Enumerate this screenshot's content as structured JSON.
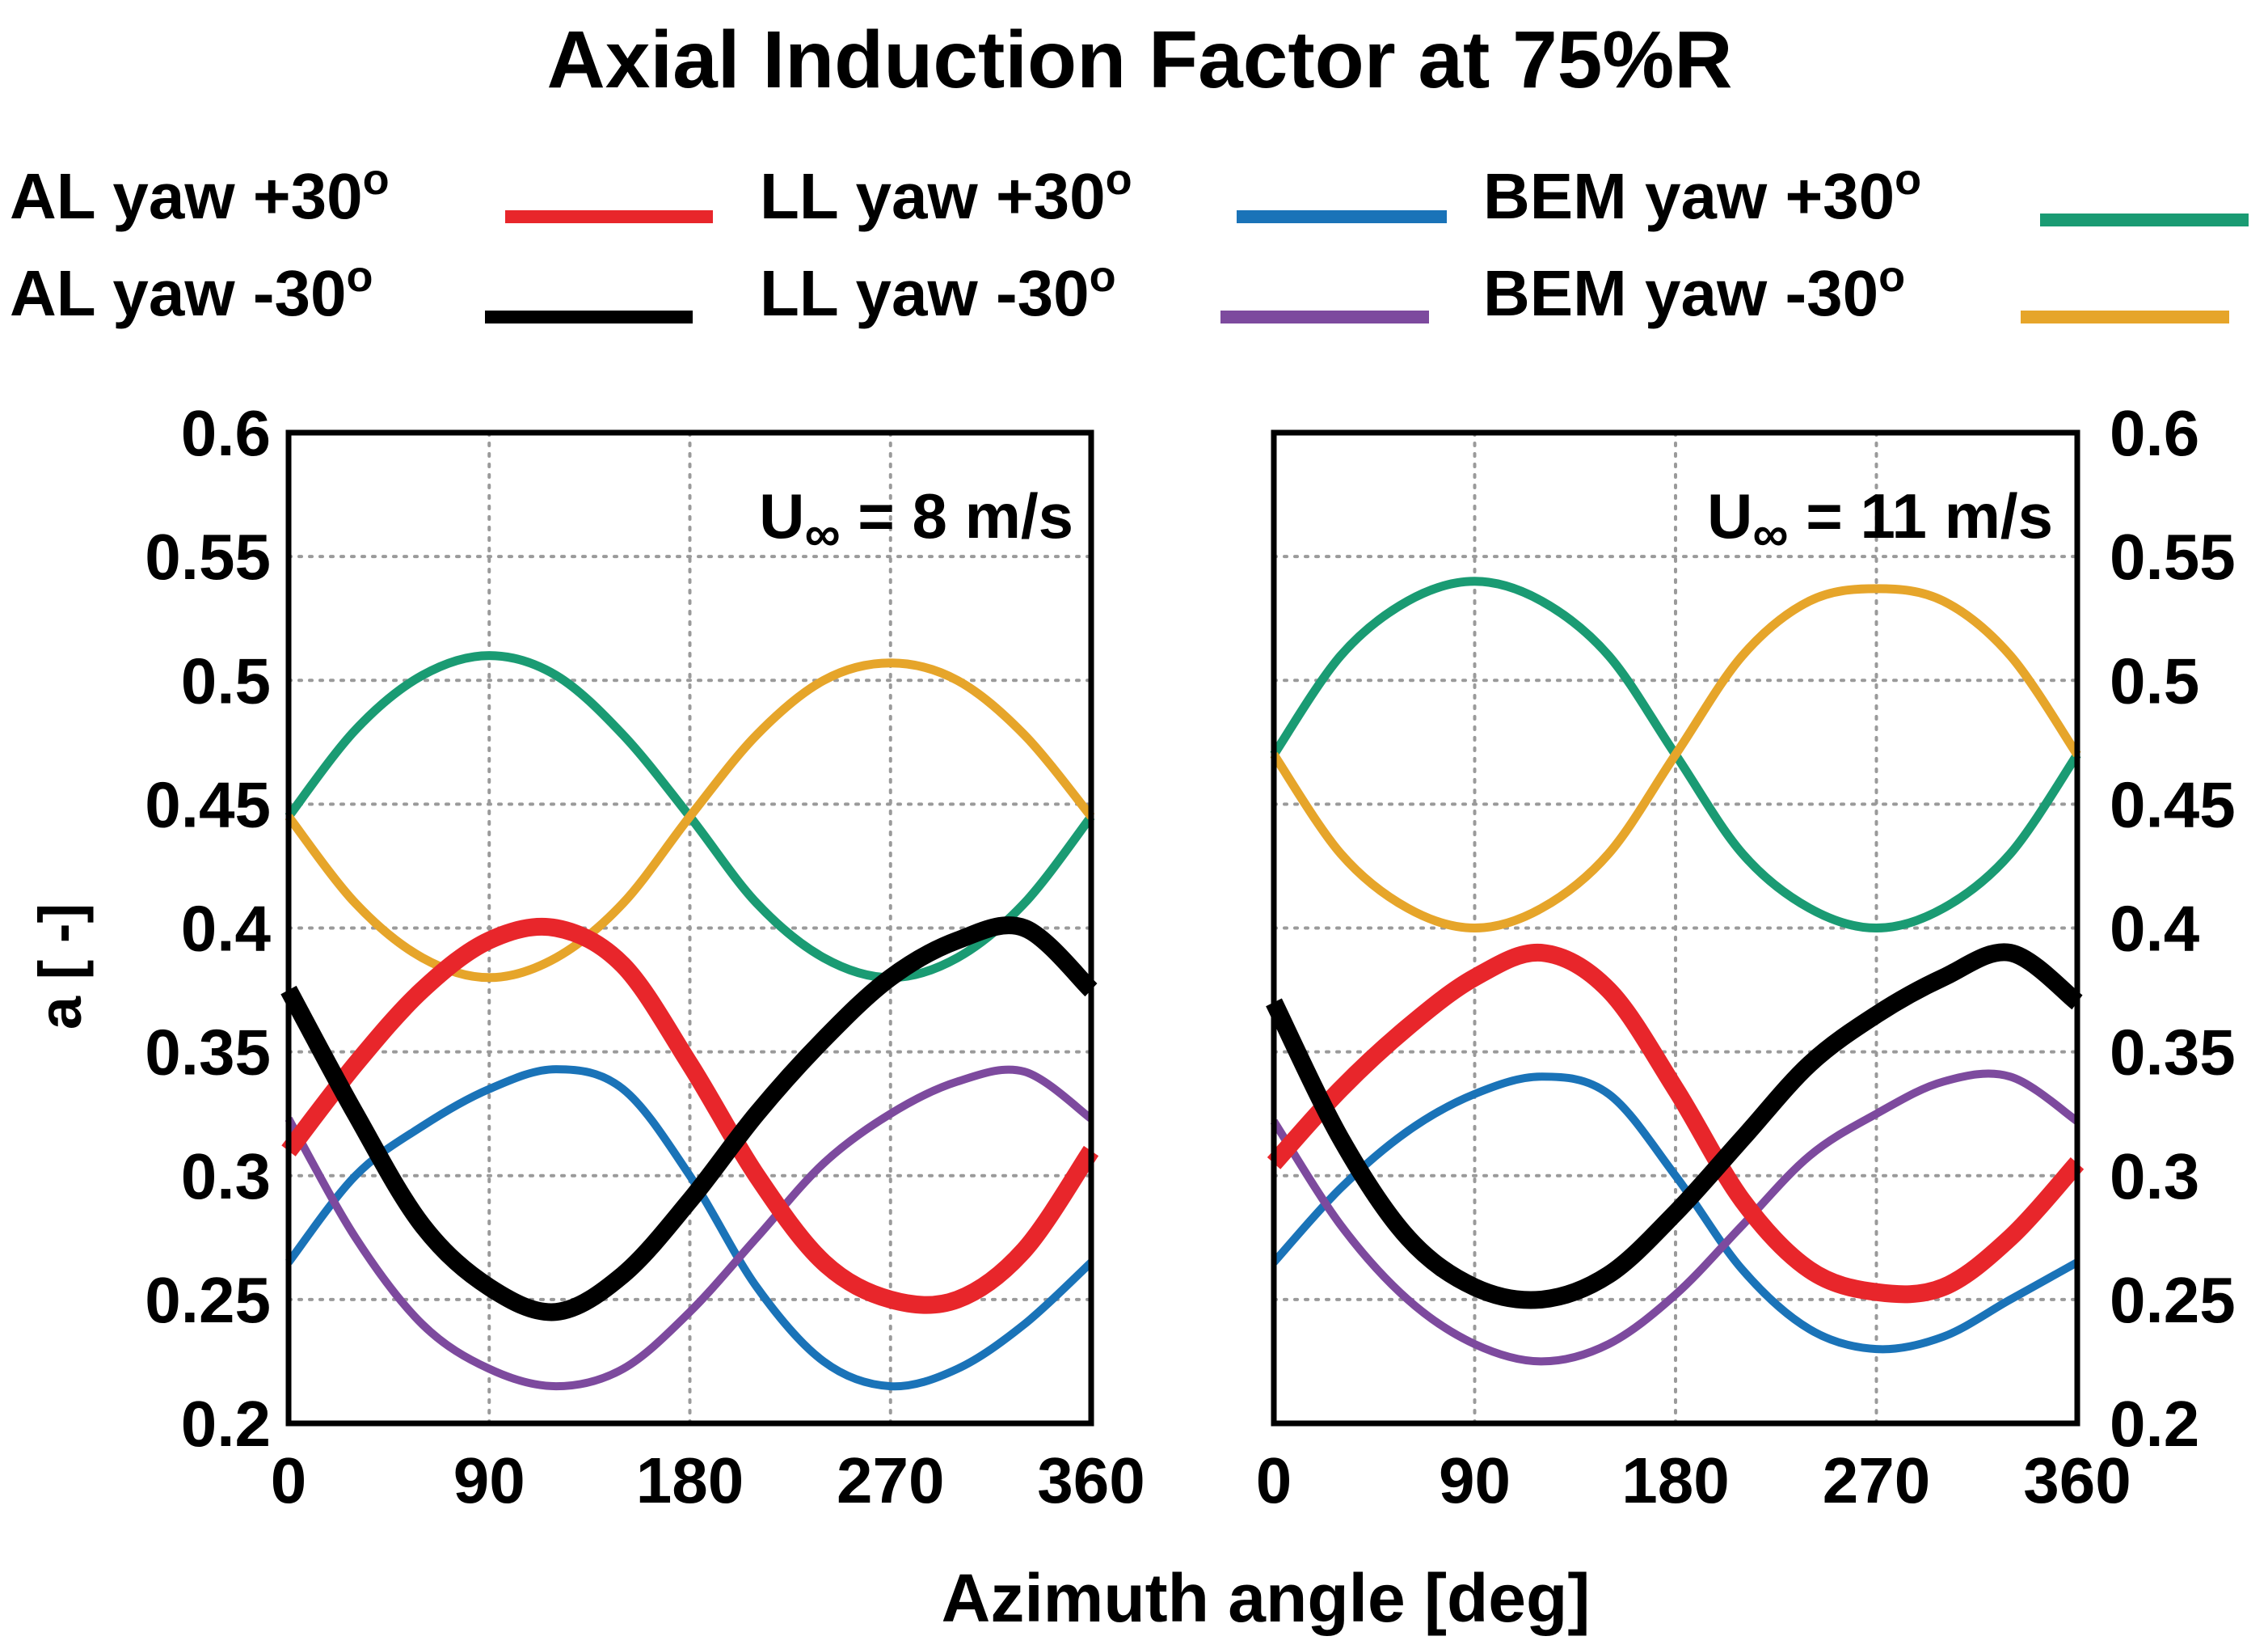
{
  "title": "Axial Induction Factor at 75%R",
  "legend": [
    {
      "label": "AL yaw +30",
      "sup": "o",
      "color": "#e8262b"
    },
    {
      "label": "AL yaw -30",
      "sup": "o",
      "color": "#000000"
    },
    {
      "label": "LL yaw +30",
      "sup": "o",
      "color": "#1a73b8"
    },
    {
      "label": "LL yaw -30",
      "sup": "o",
      "color": "#7d4a9e"
    },
    {
      "label": "BEM yaw +30",
      "sup": "o",
      "color": "#1a9b73"
    },
    {
      "label": "BEM yaw -30",
      "sup": "o",
      "color": "#e6a52a"
    }
  ],
  "xlabel": "Azimuth angle [deg]",
  "ylabel": "a [ -]",
  "chart_data": [
    {
      "type": "line",
      "annotation": {
        "main": "U",
        "sub": "∞",
        "rest": " = 8 m/s"
      },
      "xlim": [
        0,
        360
      ],
      "ylim": [
        0.2,
        0.6
      ],
      "xticks": [
        "0",
        "90",
        "180",
        "270",
        "360"
      ],
      "yticks": [
        "0.2",
        "0.25",
        "0.3",
        "0.35",
        "0.4",
        "0.45",
        "0.5",
        "0.55",
        "0.6"
      ],
      "grid": true,
      "x": [
        0,
        30,
        60,
        90,
        120,
        150,
        180,
        210,
        240,
        270,
        300,
        330,
        360
      ],
      "series": [
        {
          "name": "AL yaw +30",
          "values": [
            0.31,
            0.345,
            0.375,
            0.395,
            0.4,
            0.385,
            0.345,
            0.3,
            0.265,
            0.25,
            0.25,
            0.27,
            0.31
          ]
        },
        {
          "name": "AL yaw -30",
          "values": [
            0.375,
            0.325,
            0.28,
            0.255,
            0.245,
            0.26,
            0.29,
            0.325,
            0.355,
            0.38,
            0.395,
            0.4,
            0.375
          ]
        },
        {
          "name": "LL yaw +30",
          "values": [
            0.265,
            0.3,
            0.32,
            0.335,
            0.343,
            0.335,
            0.3,
            0.255,
            0.225,
            0.215,
            0.222,
            0.24,
            0.265
          ]
        },
        {
          "name": "LL yaw -30",
          "values": [
            0.323,
            0.275,
            0.24,
            0.222,
            0.215,
            0.222,
            0.245,
            0.275,
            0.305,
            0.325,
            0.338,
            0.342,
            0.323
          ]
        },
        {
          "name": "BEM yaw +30",
          "values": [
            0.445,
            0.48,
            0.502,
            0.51,
            0.502,
            0.478,
            0.445,
            0.41,
            0.388,
            0.38,
            0.388,
            0.41,
            0.445
          ]
        },
        {
          "name": "BEM yaw -30",
          "values": [
            0.445,
            0.41,
            0.388,
            0.38,
            0.388,
            0.41,
            0.445,
            0.478,
            0.5,
            0.507,
            0.5,
            0.478,
            0.445
          ]
        }
      ]
    },
    {
      "type": "line",
      "annotation": {
        "main": "U",
        "sub": "∞",
        "rest": " = 11 m/s"
      },
      "xlim": [
        0,
        360
      ],
      "ylim": [
        0.2,
        0.6
      ],
      "xticks": [
        "0",
        "90",
        "180",
        "270",
        "360"
      ],
      "yticks": [
        "0.2",
        "0.25",
        "0.3",
        "0.35",
        "0.4",
        "0.45",
        "0.5",
        "0.55",
        "0.6"
      ],
      "grid": true,
      "x": [
        0,
        30,
        60,
        90,
        120,
        150,
        180,
        210,
        240,
        270,
        300,
        330,
        360
      ],
      "series": [
        {
          "name": "AL yaw +30",
          "values": [
            0.305,
            0.335,
            0.36,
            0.38,
            0.39,
            0.375,
            0.335,
            0.29,
            0.262,
            0.253,
            0.255,
            0.275,
            0.305
          ]
        },
        {
          "name": "AL yaw -30",
          "values": [
            0.37,
            0.315,
            0.275,
            0.255,
            0.25,
            0.26,
            0.285,
            0.315,
            0.345,
            0.365,
            0.38,
            0.39,
            0.37
          ]
        },
        {
          "name": "LL yaw +30",
          "values": [
            0.265,
            0.295,
            0.318,
            0.333,
            0.34,
            0.333,
            0.3,
            0.262,
            0.238,
            0.23,
            0.235,
            0.25,
            0.265
          ]
        },
        {
          "name": "LL yaw -30",
          "values": [
            0.322,
            0.28,
            0.25,
            0.232,
            0.225,
            0.232,
            0.252,
            0.28,
            0.308,
            0.325,
            0.338,
            0.34,
            0.322
          ]
        },
        {
          "name": "BEM yaw +30",
          "values": [
            0.47,
            0.51,
            0.532,
            0.54,
            0.532,
            0.51,
            0.47,
            0.43,
            0.408,
            0.4,
            0.408,
            0.43,
            0.47
          ]
        },
        {
          "name": "BEM yaw -30",
          "values": [
            0.47,
            0.43,
            0.408,
            0.4,
            0.408,
            0.43,
            0.47,
            0.51,
            0.532,
            0.537,
            0.532,
            0.51,
            0.47
          ]
        }
      ]
    }
  ]
}
